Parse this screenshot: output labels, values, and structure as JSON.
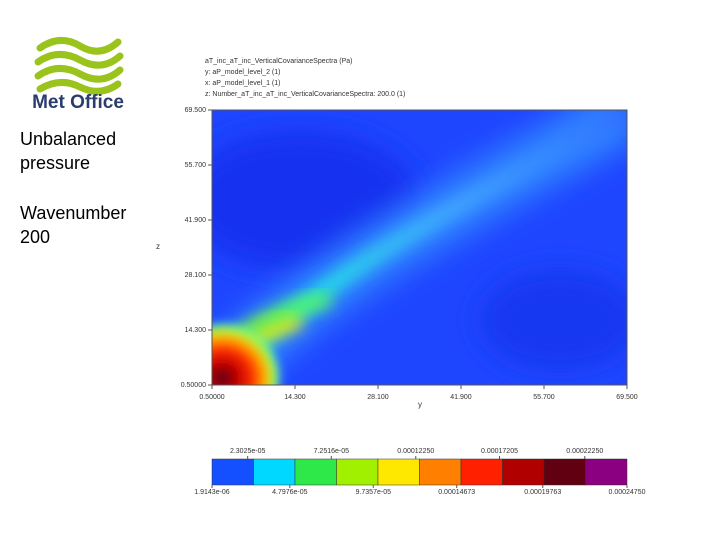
{
  "logo_text": "Met Office",
  "side_text": [
    "Unbalanced pressure",
    "Wavenumber 200"
  ],
  "chart_data": {
    "type": "heatmap",
    "header": [
      "aT_inc_aT_inc_VerticalCovarianceSpectra (Pa)",
      "y: aP_model_level_2 (1)",
      "x: aP_model_level_1 (1)",
      "z: Number_aT_inc_aT_inc_VerticalCovarianceSpectra: 200.0 (1)"
    ],
    "x_label": "y",
    "y_label": "z",
    "xlim": [
      0.5,
      69.5
    ],
    "ylim": [
      0.5,
      69.5
    ],
    "xticks": [
      {
        "value": 0.5,
        "label": "0.50000"
      },
      {
        "value": 14.3,
        "label": "14.300"
      },
      {
        "value": 28.1,
        "label": "28.100"
      },
      {
        "value": 41.9,
        "label": "41.900"
      },
      {
        "value": 55.7,
        "label": "55.700"
      },
      {
        "value": 69.5,
        "label": "69.500"
      }
    ],
    "yticks": [
      {
        "value": 0.5,
        "label": "0.50000"
      },
      {
        "value": 14.3,
        "label": "14.300"
      },
      {
        "value": 28.1,
        "label": "28.100"
      },
      {
        "value": 41.9,
        "label": "41.900"
      },
      {
        "value": 55.7,
        "label": "55.700"
      },
      {
        "value": 69.5,
        "label": "69.500"
      }
    ],
    "colorbar": {
      "clim": [
        1.9143e-06,
        0.0002475
      ],
      "colors": [
        "#1450ff",
        "#00d8ff",
        "#2ee84a",
        "#a0f000",
        "#ffe800",
        "#ff8000",
        "#ff2000",
        "#b00000",
        "#600010",
        "#8a0080"
      ],
      "lower_ticks": [
        {
          "value": 1.9143e-06,
          "label": "1.9143e-06"
        },
        {
          "value": 4.7976e-05,
          "label": "4.7976e-05"
        },
        {
          "value": 9.7357e-05,
          "label": "9.7357e-05"
        },
        {
          "value": 0.00014673,
          "label": "0.00014673"
        },
        {
          "value": 0.00019763,
          "label": "0.00019763"
        },
        {
          "value": 0.0002475,
          "label": "0.00024750"
        }
      ],
      "upper_ticks": [
        {
          "value": 2.3025e-05,
          "label": "2.3025e-05"
        },
        {
          "value": 7.2516e-05,
          "label": "7.2516e-05"
        },
        {
          "value": 0.0001225,
          "label": "0.00012250"
        },
        {
          "value": 0.00017205,
          "label": "0.00017205"
        },
        {
          "value": 0.0002225,
          "label": "0.00022250"
        }
      ]
    }
  }
}
